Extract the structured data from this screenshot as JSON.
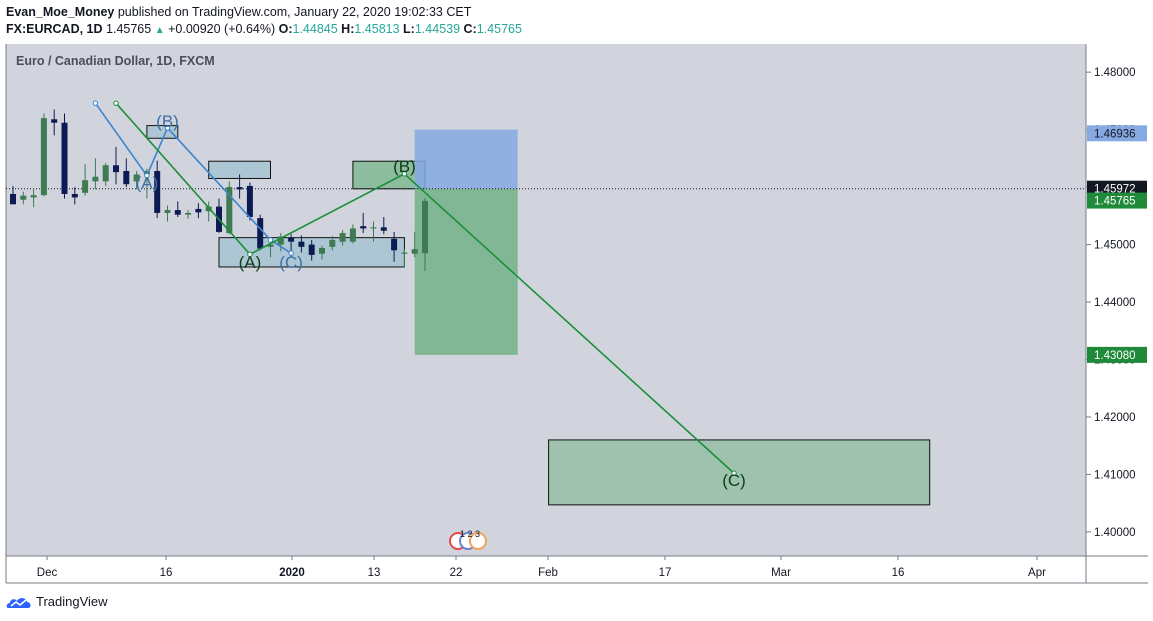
{
  "header": {
    "author": "Evan_Moe_Money",
    "published": "published on TradingView.com, January 22, 2020 19:02:33 CET",
    "symbol": "FX:EURCAD, 1D",
    "last": "1.45765",
    "change": "+0.00920 (+0.64%)",
    "o_label": "O:",
    "o": "1.44845",
    "h_label": "H:",
    "h": "1.45813",
    "l_label": "L:",
    "l": "1.44539",
    "c_label": "C:",
    "c": "1.45765"
  },
  "footer": {
    "brand": "TradingView",
    "logo_icon": "tradingview-cloud-icon"
  },
  "event_badge": "1 2 3",
  "colors": {
    "pane_bg": "#d1d4dc",
    "bull": "#3e7a52",
    "bear": "#0d1b54",
    "blue_wave": "#3d86cf",
    "green_wave": "#1b8f3a",
    "box_fill": "#8fbacd",
    "target_fill": "#7cb58f",
    "stop_fill": "#86a9e3",
    "price_tag_green": "#1e8a3a",
    "price_tag_dark": "#131722"
  },
  "chart_data": {
    "type": "candlestick",
    "title": "Euro / Canadian Dollar, 1D, FXCM",
    "y_ticks": [
      "1.48000",
      "1.47000",
      "1.46000",
      "1.45000",
      "1.44000",
      "1.43000",
      "1.42000",
      "1.41000",
      "1.40000"
    ],
    "ylim": [
      1.3958,
      1.4849
    ],
    "x_ticks": [
      "Dec",
      "16",
      "2020",
      "13",
      "22",
      "Feb",
      "17",
      "Mar",
      "16",
      "Apr"
    ],
    "price_tags": [
      {
        "label": "1.46936",
        "value": 1.46936,
        "style": "blue"
      },
      {
        "label": "1.45972",
        "value": 1.45972,
        "style": "dark"
      },
      {
        "label": "1.45765",
        "value": 1.45765,
        "style": "green"
      },
      {
        "label": "1.43080",
        "value": 1.4308,
        "style": "green"
      }
    ],
    "current_price_line": 1.45972,
    "candles": [
      {
        "o": 1.4588,
        "h": 1.4602,
        "l": 1.4572,
        "c": 1.457
      },
      {
        "o": 1.4578,
        "h": 1.4592,
        "l": 1.457,
        "c": 1.4585
      },
      {
        "o": 1.4582,
        "h": 1.4598,
        "l": 1.4565,
        "c": 1.4586
      },
      {
        "o": 1.4586,
        "h": 1.4728,
        "l": 1.4584,
        "c": 1.472
      },
      {
        "o": 1.4718,
        "h": 1.4735,
        "l": 1.469,
        "c": 1.4712
      },
      {
        "o": 1.4712,
        "h": 1.4728,
        "l": 1.458,
        "c": 1.4588
      },
      {
        "o": 1.4588,
        "h": 1.46,
        "l": 1.457,
        "c": 1.4582
      },
      {
        "o": 1.459,
        "h": 1.464,
        "l": 1.4585,
        "c": 1.4612
      },
      {
        "o": 1.461,
        "h": 1.465,
        "l": 1.4596,
        "c": 1.4618
      },
      {
        "o": 1.461,
        "h": 1.4642,
        "l": 1.4602,
        "c": 1.4638
      },
      {
        "o": 1.4638,
        "h": 1.467,
        "l": 1.4605,
        "c": 1.4626
      },
      {
        "o": 1.4628,
        "h": 1.465,
        "l": 1.46,
        "c": 1.4605
      },
      {
        "o": 1.461,
        "h": 1.4628,
        "l": 1.4596,
        "c": 1.4622
      },
      {
        "o": 1.4622,
        "h": 1.4632,
        "l": 1.458,
        "c": 1.4628
      },
      {
        "o": 1.4628,
        "h": 1.4646,
        "l": 1.4546,
        "c": 1.4555
      },
      {
        "o": 1.4555,
        "h": 1.4568,
        "l": 1.454,
        "c": 1.456
      },
      {
        "o": 1.456,
        "h": 1.4575,
        "l": 1.4548,
        "c": 1.4552
      },
      {
        "o": 1.4552,
        "h": 1.456,
        "l": 1.4545,
        "c": 1.4555
      },
      {
        "o": 1.4562,
        "h": 1.4572,
        "l": 1.4546,
        "c": 1.4556
      },
      {
        "o": 1.4558,
        "h": 1.4575,
        "l": 1.454,
        "c": 1.4566
      },
      {
        "o": 1.4566,
        "h": 1.458,
        "l": 1.452,
        "c": 1.4522
      },
      {
        "o": 1.452,
        "h": 1.461,
        "l": 1.4518,
        "c": 1.46
      },
      {
        "o": 1.46,
        "h": 1.4622,
        "l": 1.458,
        "c": 1.4596
      },
      {
        "o": 1.4602,
        "h": 1.4608,
        "l": 1.4542,
        "c": 1.4548
      },
      {
        "o": 1.4546,
        "h": 1.4552,
        "l": 1.449,
        "c": 1.4493
      },
      {
        "o": 1.4496,
        "h": 1.4502,
        "l": 1.4478,
        "c": 1.45
      },
      {
        "o": 1.45,
        "h": 1.452,
        "l": 1.4488,
        "c": 1.4514
      },
      {
        "o": 1.4512,
        "h": 1.4518,
        "l": 1.4478,
        "c": 1.4505
      },
      {
        "o": 1.4505,
        "h": 1.4516,
        "l": 1.4486,
        "c": 1.4496
      },
      {
        "o": 1.45,
        "h": 1.4508,
        "l": 1.4472,
        "c": 1.4482
      },
      {
        "o": 1.4484,
        "h": 1.4498,
        "l": 1.4474,
        "c": 1.4494
      },
      {
        "o": 1.4496,
        "h": 1.4515,
        "l": 1.449,
        "c": 1.4508
      },
      {
        "o": 1.4505,
        "h": 1.4525,
        "l": 1.4498,
        "c": 1.452
      },
      {
        "o": 1.4505,
        "h": 1.4535,
        "l": 1.4502,
        "c": 1.4528
      },
      {
        "o": 1.4532,
        "h": 1.4555,
        "l": 1.452,
        "c": 1.4528
      },
      {
        "o": 1.4528,
        "h": 1.454,
        "l": 1.4505,
        "c": 1.453
      },
      {
        "o": 1.453,
        "h": 1.4548,
        "l": 1.4518,
        "c": 1.4524
      },
      {
        "o": 1.451,
        "h": 1.4522,
        "l": 1.447,
        "c": 1.449
      },
      {
        "o": 1.4484,
        "h": 1.4492,
        "l": 1.446,
        "c": 1.4486
      },
      {
        "o": 1.4484,
        "h": 1.4522,
        "l": 1.4478,
        "c": 1.4492
      },
      {
        "o": 1.4485,
        "h": 1.4581,
        "l": 1.4454,
        "c": 1.4576
      }
    ],
    "waves": [
      {
        "color": "blue",
        "points": [
          [
            8,
            1.4746
          ],
          [
            13,
            1.462
          ],
          [
            15,
            1.4703
          ],
          [
            25,
            1.4508
          ],
          [
            27,
            1.4485
          ]
        ],
        "labels": [
          {
            "text": "(A)",
            "x": 13,
            "y": 1.4608
          },
          {
            "text": "(B)",
            "x": 15,
            "y": 1.4715
          },
          {
            "text": "(C)",
            "x": 27,
            "y": 1.447
          }
        ]
      },
      {
        "color": "green",
        "points": [
          [
            10,
            1.4746
          ],
          [
            23,
            1.4483
          ],
          [
            38,
            1.4623
          ],
          [
            70,
            1.4102
          ]
        ],
        "labels": [
          {
            "text": "(A)",
            "x": 23,
            "y": 1.447
          },
          {
            "text": "(B)",
            "x": 38,
            "y": 1.4637
          },
          {
            "text": "(C)",
            "x": 70,
            "y": 1.409
          }
        ]
      }
    ],
    "zones": [
      {
        "kind": "box",
        "x0": 13,
        "x1": 16,
        "y0": 1.4685,
        "y1": 1.4707
      },
      {
        "kind": "box",
        "x0": 19,
        "x1": 25,
        "y0": 1.4615,
        "y1": 1.4645
      },
      {
        "kind": "box",
        "x0": 20,
        "x1": 38,
        "y0": 1.4461,
        "y1": 1.4512
      },
      {
        "kind": "zone",
        "x0": 33,
        "x1": 40,
        "y0": 1.4597,
        "y1": 1.4645
      },
      {
        "kind": "stop",
        "x0": 39,
        "x1": 49,
        "y0": 1.4597,
        "y1": 1.47
      },
      {
        "kind": "target",
        "x0": 39,
        "x1": 49,
        "y0": 1.4308,
        "y1": 1.4597
      },
      {
        "kind": "target_box",
        "x0": 52,
        "x1": 89,
        "y0": 1.4047,
        "y1": 1.416
      }
    ]
  }
}
